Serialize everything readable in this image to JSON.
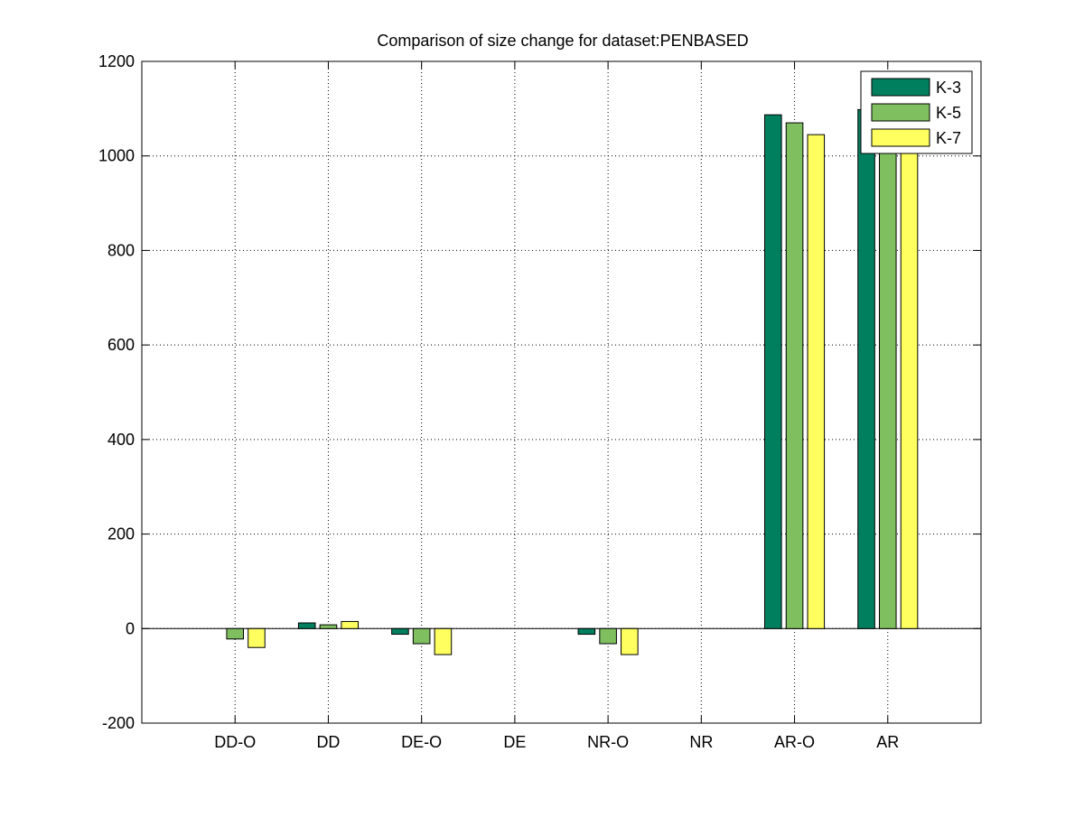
{
  "chart_data": {
    "type": "bar",
    "title": "Comparison of size change for dataset:PENBASED",
    "xlabel": "",
    "ylabel": "",
    "categories": [
      "DD-O",
      "DD",
      "DE-O",
      "DE",
      "NR-O",
      "NR",
      "AR-O",
      "AR"
    ],
    "series": [
      {
        "name": "K-3",
        "color": "#007f5f",
        "values": [
          0,
          12,
          -12,
          0,
          -12,
          0,
          1087,
          1098
        ]
      },
      {
        "name": "K-5",
        "color": "#7fbf5f",
        "values": [
          -22,
          8,
          -32,
          0,
          -32,
          0,
          1070,
          1080
        ]
      },
      {
        "name": "K-7",
        "color": "#ffff5f",
        "values": [
          -40,
          15,
          -55,
          0,
          -55,
          0,
          1045,
          1060
        ]
      }
    ],
    "ylim": [
      -200,
      1200
    ],
    "yticks": [
      -200,
      0,
      200,
      400,
      600,
      800,
      1000,
      1200
    ],
    "grid": true,
    "legend_position": "top-right"
  }
}
